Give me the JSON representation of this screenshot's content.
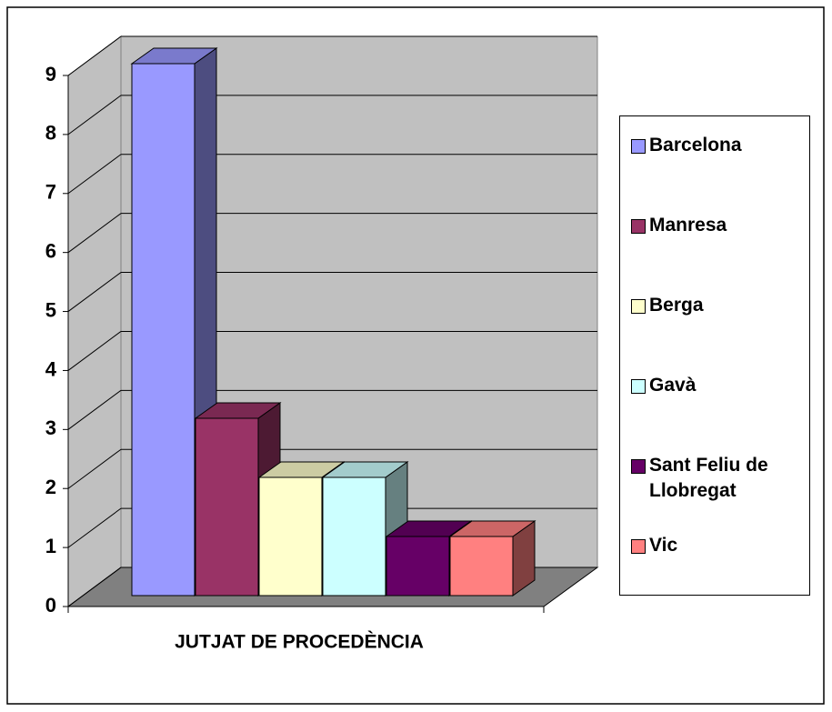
{
  "chart_data": {
    "type": "bar3d",
    "categories": [
      "JUTJAT DE PROCEDÈNCIA"
    ],
    "series": [
      {
        "name": "Barcelona",
        "color": "#9999ff",
        "values": [
          9
        ]
      },
      {
        "name": "Manresa",
        "color": "#993366",
        "values": [
          3
        ]
      },
      {
        "name": "Berga",
        "color": "#ffffcc",
        "values": [
          2
        ]
      },
      {
        "name": "Gavà",
        "color": "#ccffff",
        "values": [
          2
        ]
      },
      {
        "name": "Sant Feliu de Llobregat",
        "color": "#660066",
        "values": [
          1
        ]
      },
      {
        "name": "Vic",
        "color": "#ff8080",
        "values": [
          1
        ]
      }
    ],
    "ylim": [
      0,
      9
    ],
    "yticks": [
      0,
      1,
      2,
      3,
      4,
      5,
      6,
      7,
      8,
      9
    ],
    "grid": true,
    "legend": "right"
  }
}
